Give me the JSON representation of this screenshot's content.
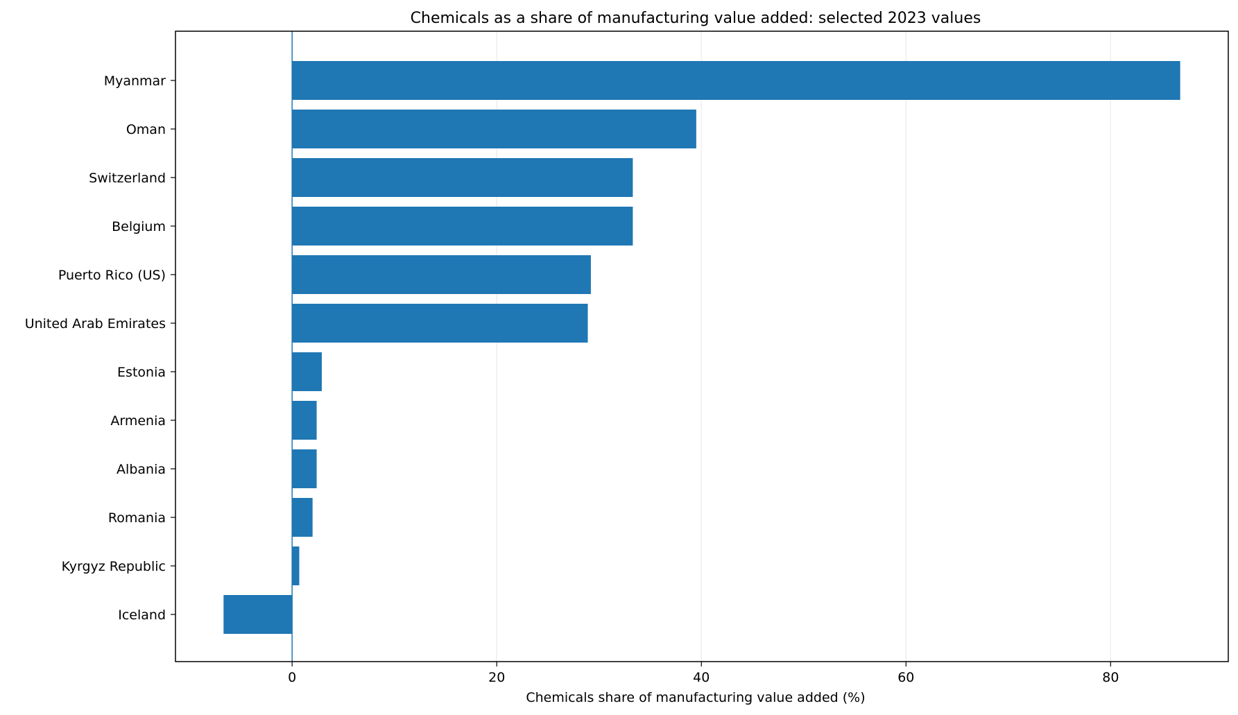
{
  "chart_data": {
    "type": "bar",
    "orientation": "horizontal",
    "title": "Chemicals as a share of manufacturing value added: selected 2023 values",
    "xlabel": "Chemicals share of manufacturing value added (%)",
    "ylabel": "",
    "categories": [
      "Myanmar",
      "Oman",
      "Switzerland",
      "Belgium",
      "Puerto Rico (US)",
      "United Arab Emirates",
      "Estonia",
      "Armenia",
      "Albania",
      "Romania",
      "Kyrgyz Republic",
      "Iceland"
    ],
    "values": [
      86.8,
      39.5,
      33.3,
      33.3,
      29.2,
      28.9,
      2.9,
      2.4,
      2.4,
      2.0,
      0.7,
      -6.7
    ],
    "xlim": [
      -11.4,
      91.5
    ],
    "xticks": [
      0,
      20,
      40,
      60,
      80
    ],
    "grid": "vertical",
    "zero_line": true,
    "bar_color": "#1f77b4",
    "grid_color": "#ebebeb",
    "legend": "none"
  }
}
